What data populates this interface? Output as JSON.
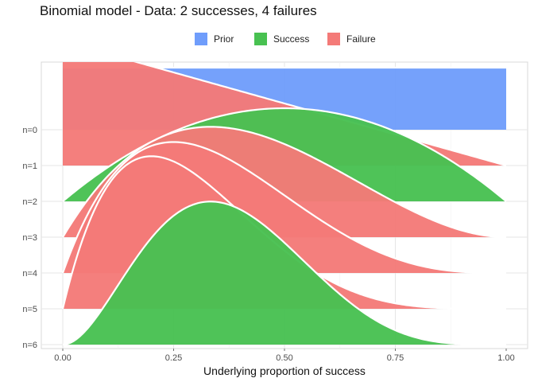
{
  "chart_data": {
    "type": "area",
    "subtype": "ridgeline",
    "title": "Binomial model - Data: 2 successes, 4 failures",
    "xlabel": "Underlying proportion of success",
    "ylabel": "",
    "xlim": [
      0,
      1
    ],
    "x_ticks": [
      "0.00",
      "0.25",
      "0.50",
      "0.75",
      "1.00"
    ],
    "y_ticks": [
      "n=0",
      "n=1",
      "n=2",
      "n=3",
      "n=4",
      "n=5",
      "n=6"
    ],
    "grid": true,
    "legend_position": "top",
    "legend": [
      {
        "label": "Prior",
        "color": "#6f9dfb"
      },
      {
        "label": "Success",
        "color": "#48c151"
      },
      {
        "label": "Failure",
        "color": "#f47a78"
      }
    ],
    "series": [
      {
        "row": "n=0",
        "data": "Prior",
        "density": "1"
      },
      {
        "row": "n=1",
        "data": "Failure",
        "density": "2(1-p)"
      },
      {
        "row": "n=2",
        "data": "Success",
        "density": "6p(1-p)"
      },
      {
        "row": "n=3",
        "data": "Failure",
        "density": "12p(1-p)^2"
      },
      {
        "row": "n=4",
        "data": "Failure",
        "density": "20p(1-p)^3"
      },
      {
        "row": "n=5",
        "data": "Failure",
        "density": "30p(1-p)^4"
      },
      {
        "row": "n=6",
        "data": "Success",
        "density": "105p^2(1-p)^4"
      }
    ]
  }
}
